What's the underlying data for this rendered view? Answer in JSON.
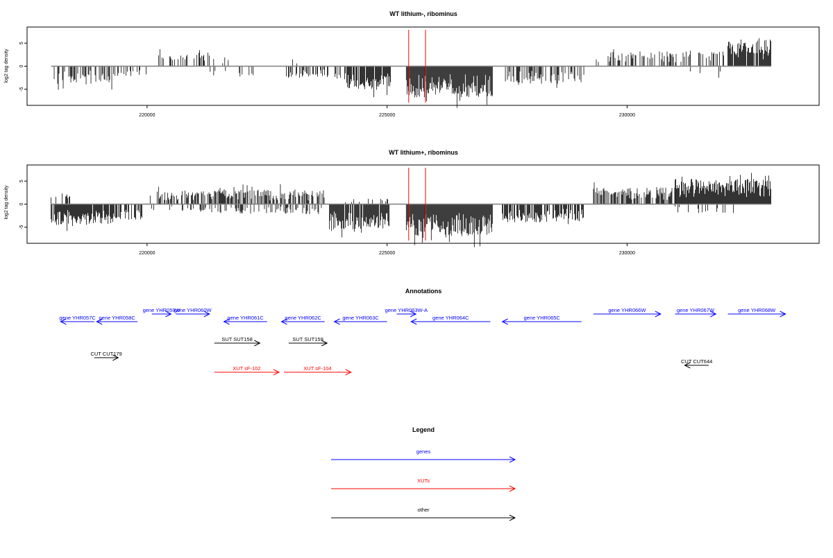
{
  "chart_data": [
    {
      "type": "bar",
      "title": "WT lithium-, ribominus",
      "ylabel": "log2 tag density",
      "xlim": [
        217500,
        234000
      ],
      "ylim": [
        -8.5,
        8.5
      ],
      "yticks": [
        -5,
        0,
        5
      ],
      "xticks": [
        220000,
        225000,
        230000
      ],
      "grid": false,
      "baseline_segment": [
        218000,
        233000
      ],
      "markers": [
        225450,
        225800
      ],
      "marker_color": "#ff0000",
      "regions": [
        {
          "x": [
            218050,
            219300
          ],
          "sign": -1,
          "amp": 3.8,
          "density": 0.45
        },
        {
          "x": [
            219300,
            220000
          ],
          "sign": -1,
          "amp": 2.2,
          "density": 0.18
        },
        {
          "x": [
            220050,
            220600
          ],
          "sign": 1,
          "amp": 2.8,
          "density": 0.25
        },
        {
          "x": [
            220500,
            221300
          ],
          "sign": 1,
          "amp": 3.0,
          "density": 0.35
        },
        {
          "x": [
            221300,
            222300
          ],
          "sign": 1,
          "amp": 2.0,
          "density": 0.06
        },
        {
          "x": [
            221300,
            222300
          ],
          "sign": -1,
          "amp": 2.3,
          "density": 0.08
        },
        {
          "x": [
            222900,
            223800
          ],
          "sign": -1,
          "amp": 2.6,
          "density": 0.4
        },
        {
          "x": [
            222900,
            223800
          ],
          "sign": 1,
          "amp": 1.6,
          "density": 0.06
        },
        {
          "x": [
            223900,
            225100
          ],
          "sign": -1,
          "amp": 5.0,
          "density": 0.75
        },
        {
          "x": [
            225400,
            227200
          ],
          "sign": -1,
          "amp": 6.8,
          "density": 1.0
        },
        {
          "x": [
            227450,
            229100
          ],
          "sign": -1,
          "amp": 3.8,
          "density": 0.55
        },
        {
          "x": [
            229300,
            231200
          ],
          "sign": 1,
          "amp": 3.2,
          "density": 0.4
        },
        {
          "x": [
            231200,
            232100
          ],
          "sign": 1,
          "amp": 3.5,
          "density": 0.45
        },
        {
          "x": [
            231200,
            232100
          ],
          "sign": -1,
          "amp": 2.0,
          "density": 0.06
        },
        {
          "x": [
            232100,
            233000
          ],
          "sign": 1,
          "amp": 5.8,
          "density": 0.9
        }
      ]
    },
    {
      "type": "bar",
      "title": "WT lithium+, ribominus",
      "ylabel": "log2 tag density",
      "xlim": [
        217500,
        234000
      ],
      "ylim": [
        -8.5,
        8.5
      ],
      "yticks": [
        -5,
        0,
        5
      ],
      "xticks": [
        220000,
        225000,
        230000
      ],
      "grid": false,
      "baseline_segment": [
        218000,
        233000
      ],
      "markers": [
        225450,
        225800
      ],
      "marker_color": "#ff0000",
      "regions": [
        {
          "x": [
            218000,
            218400
          ],
          "sign": 1,
          "amp": 2.5,
          "density": 0.35
        },
        {
          "x": [
            218000,
            219300
          ],
          "sign": -1,
          "amp": 4.5,
          "density": 0.9
        },
        {
          "x": [
            219300,
            219900
          ],
          "sign": -1,
          "amp": 3.5,
          "density": 0.55
        },
        {
          "x": [
            220050,
            221000
          ],
          "sign": 1,
          "amp": 3.0,
          "density": 0.55
        },
        {
          "x": [
            220050,
            221000
          ],
          "sign": -1,
          "amp": 1.5,
          "density": 0.2
        },
        {
          "x": [
            221000,
            222300
          ],
          "sign": 1,
          "amp": 3.2,
          "density": 0.6
        },
        {
          "x": [
            221000,
            222300
          ],
          "sign": -1,
          "amp": 2.0,
          "density": 0.3
        },
        {
          "x": [
            222300,
            223700
          ],
          "sign": 1,
          "amp": 3.2,
          "density": 0.55
        },
        {
          "x": [
            222300,
            223700
          ],
          "sign": -1,
          "amp": 2.2,
          "density": 0.35
        },
        {
          "x": [
            223800,
            225050
          ],
          "sign": -1,
          "amp": 5.5,
          "density": 0.9
        },
        {
          "x": [
            223800,
            225050
          ],
          "sign": 1,
          "amp": 1.2,
          "density": 0.1
        },
        {
          "x": [
            225400,
            227200
          ],
          "sign": -1,
          "amp": 7.0,
          "density": 1.0
        },
        {
          "x": [
            227400,
            229100
          ],
          "sign": -1,
          "amp": 4.0,
          "density": 0.7
        },
        {
          "x": [
            229300,
            231000
          ],
          "sign": 1,
          "amp": 3.6,
          "density": 0.7
        },
        {
          "x": [
            231000,
            233000
          ],
          "sign": 1,
          "amp": 5.5,
          "density": 1.0
        },
        {
          "x": [
            231000,
            232500
          ],
          "sign": -1,
          "amp": 2.0,
          "density": 0.2
        }
      ]
    }
  ],
  "annotations": {
    "title": "Annotations",
    "features": [
      {
        "label": "gene YHR057C",
        "kind": "gene",
        "strand": "-",
        "start": 218200,
        "end": 218900,
        "row": 1
      },
      {
        "label": "gene YHR058C",
        "kind": "gene",
        "strand": "-",
        "start": 218950,
        "end": 219800,
        "row": 1
      },
      {
        "label": "gene YHR059W",
        "kind": "gene",
        "strand": "+",
        "start": 220100,
        "end": 220500,
        "row": 0
      },
      {
        "label": "gene YHR060W",
        "kind": "gene",
        "strand": "+",
        "start": 220600,
        "end": 221300,
        "row": 0
      },
      {
        "label": "gene YHR061C",
        "kind": "gene",
        "strand": "-",
        "start": 221600,
        "end": 222500,
        "row": 1
      },
      {
        "label": "gene YHR062C",
        "kind": "gene",
        "strand": "-",
        "start": 222800,
        "end": 223700,
        "row": 1
      },
      {
        "label": "gene YHR063C",
        "kind": "gene",
        "strand": "-",
        "start": 223900,
        "end": 225000,
        "row": 1
      },
      {
        "label": "gene YHR063W-A",
        "kind": "gene",
        "strand": "+",
        "start": 225200,
        "end": 225600,
        "row": 0
      },
      {
        "label": "gene YHR064C",
        "kind": "gene",
        "strand": "-",
        "start": 225500,
        "end": 227150,
        "row": 1
      },
      {
        "label": "gene YHR065C",
        "kind": "gene",
        "strand": "-",
        "start": 227400,
        "end": 229050,
        "row": 1
      },
      {
        "label": "gene YHR066W",
        "kind": "gene",
        "strand": "+",
        "start": 229300,
        "end": 230700,
        "row": 0
      },
      {
        "label": "gene YHR067W",
        "kind": "gene",
        "strand": "+",
        "start": 231000,
        "end": 231850,
        "row": 0
      },
      {
        "label": "gene YHR068W",
        "kind": "gene",
        "strand": "+",
        "start": 232100,
        "end": 233300,
        "row": 0
      },
      {
        "label": "SUT SUT158",
        "kind": "other",
        "strand": "+",
        "start": 221400,
        "end": 222350,
        "row": 2
      },
      {
        "label": "SUT SUT159",
        "kind": "other",
        "strand": "+",
        "start": 222950,
        "end": 223750,
        "row": 2
      },
      {
        "label": "CUT CUT179",
        "kind": "other",
        "strand": "+",
        "start": 218900,
        "end": 219400,
        "row": 3
      },
      {
        "label": "CUT CUT644",
        "kind": "other",
        "strand": "-",
        "start": 231200,
        "end": 231700,
        "row": 4
      },
      {
        "label": "XUT sF-102",
        "kind": "xut",
        "strand": "+",
        "start": 221400,
        "end": 222750,
        "row": 5
      },
      {
        "label": "XUT sF-104",
        "kind": "xut",
        "strand": "+",
        "start": 222850,
        "end": 224250,
        "row": 5
      }
    ]
  },
  "legend": {
    "title": "Legend",
    "items": [
      {
        "label": "genes",
        "color": "#0000ff"
      },
      {
        "label": "XUTs",
        "color": "#ff0000"
      },
      {
        "label": "other",
        "color": "#000000"
      }
    ]
  },
  "colors": {
    "gene": "#0000ff",
    "xut": "#ff0000",
    "other": "#000000"
  }
}
